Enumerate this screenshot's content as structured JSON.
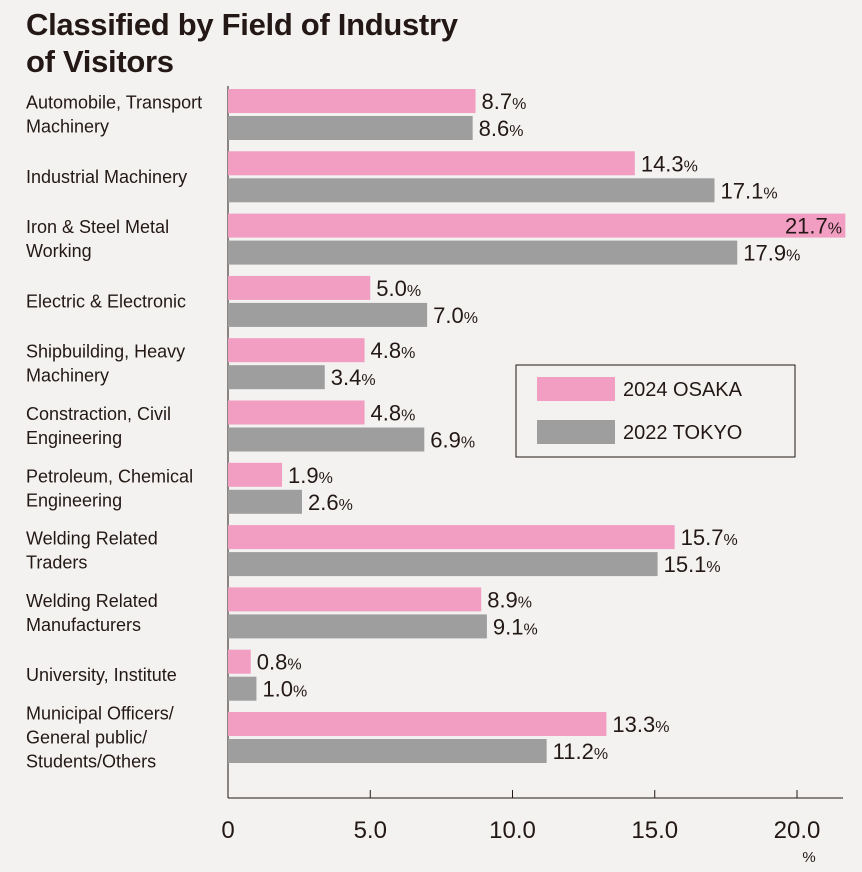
{
  "title_line1": "Classified by Field of Industry",
  "title_line2": "of Visitors",
  "chart_data": {
    "type": "bar",
    "orientation": "horizontal",
    "title": "Classified by Field of Industry of Visitors",
    "xlabel": "%",
    "xlim": [
      0,
      21.7
    ],
    "ticks": [
      "0",
      "5.0",
      "10.0",
      "15.0",
      "20.0"
    ],
    "value_suffix": "%",
    "categories": [
      [
        "Automobile, Transport",
        "Machinery"
      ],
      [
        "Industrial Machinery"
      ],
      [
        "Iron & Steel Metal",
        "Working"
      ],
      [
        "Electric & Electronic"
      ],
      [
        "Shipbuilding, Heavy",
        "Machinery"
      ],
      [
        "Constraction, Civil",
        "Engineering"
      ],
      [
        "Petroleum, Chemical",
        "Engineering"
      ],
      [
        "Welding Related",
        "Traders"
      ],
      [
        "Welding Related",
        "Manufacturers"
      ],
      [
        "University, Institute"
      ],
      [
        "Municipal Officers/",
        "General public/",
        "Students/Others"
      ]
    ],
    "series": [
      {
        "name": "2024 OSAKA",
        "color": "#f19ec2",
        "values": [
          8.7,
          14.3,
          21.7,
          5.0,
          4.8,
          4.8,
          1.9,
          15.7,
          8.9,
          0.8,
          13.3
        ],
        "labels": [
          "8.7",
          "14.3",
          "21.7",
          "5.0",
          "4.8",
          "4.8",
          "1.9",
          "15.7",
          "8.9",
          "0.8",
          "13.3"
        ]
      },
      {
        "name": "2022 TOKYO",
        "color": "#9e9e9f",
        "values": [
          8.6,
          17.1,
          17.9,
          7.0,
          3.4,
          6.9,
          2.6,
          15.1,
          9.1,
          1.0,
          11.2
        ],
        "labels": [
          "8.6",
          "17.1",
          "17.9",
          "7.0",
          "3.4",
          "6.9",
          "2.6",
          "15.1",
          "9.1",
          "1.0",
          "11.2"
        ]
      }
    ],
    "legend": {
      "placement": "right-middle"
    },
    "grid": false
  }
}
